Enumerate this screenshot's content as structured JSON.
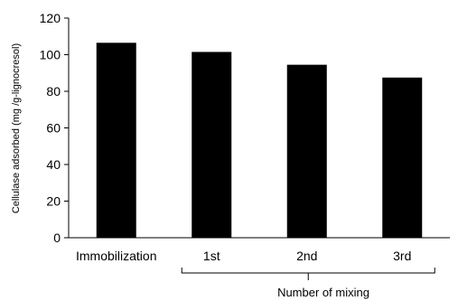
{
  "chart_data": {
    "type": "bar",
    "categories": [
      "Immobilization",
      "1st",
      "2nd",
      "3rd"
    ],
    "values": [
      106.5,
      101.5,
      94.5,
      87.5
    ],
    "title": "",
    "xlabel": "Number of mixing",
    "ylabel": "Cellulase adsorbed (mg /g-lignocresol)",
    "ylim": [
      0,
      120
    ],
    "yticks": [
      0,
      20,
      40,
      60,
      80,
      100,
      120
    ],
    "bar_color": "#000000",
    "grid": false,
    "legend": "none",
    "bracket": "groups 1st–3rd under the x-axis label"
  }
}
